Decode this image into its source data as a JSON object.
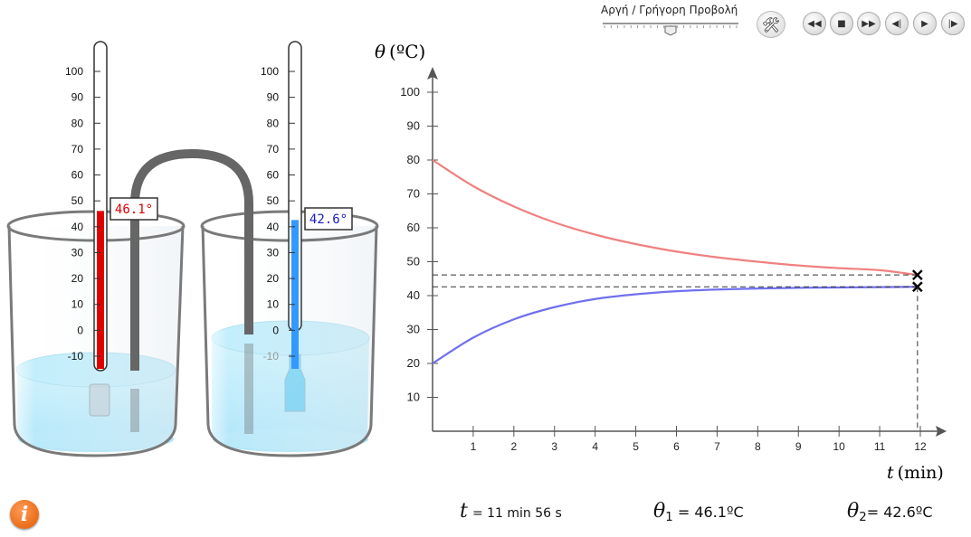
{
  "toolbar": {
    "speed_label": "Αργή / Γρήγορη Προβολή",
    "tools_icon": "hammer-wrench-icon",
    "controls": [
      {
        "name": "rewind-button",
        "icon": "rewind-icon",
        "glyph": "◀◀"
      },
      {
        "name": "stop-button",
        "icon": "stop-icon",
        "glyph": "■"
      },
      {
        "name": "fast-forward-button",
        "icon": "fast-forward-icon",
        "glyph": "▶▶"
      },
      {
        "name": "step-back-button",
        "icon": "step-back-icon",
        "glyph": "◀|"
      },
      {
        "name": "play-button",
        "icon": "play-icon",
        "glyph": "▶"
      },
      {
        "name": "step-forward-button",
        "icon": "step-forward-icon",
        "glyph": "|▶"
      }
    ]
  },
  "thermometers": {
    "scale": [
      "100",
      "90",
      "80",
      "70",
      "60",
      "50",
      "40",
      "30",
      "20",
      "10",
      "0",
      "-10"
    ],
    "left": {
      "value": 46.1,
      "label": "46.1°",
      "color": "#e00000"
    },
    "right": {
      "value": 42.6,
      "label": "42.6°",
      "color": "#3399ff"
    }
  },
  "chart_data": {
    "type": "line",
    "ylabel_symbol": "θ",
    "ylabel_unit": "(ºC)",
    "xlabel_symbol": "t",
    "xlabel_unit": "(min)",
    "xlim": [
      0,
      13
    ],
    "ylim": [
      0,
      108
    ],
    "xticks": [
      1,
      2,
      3,
      4,
      5,
      6,
      7,
      8,
      9,
      10,
      11,
      12
    ],
    "yticks": [
      10,
      20,
      30,
      40,
      50,
      60,
      70,
      80,
      90,
      100
    ],
    "series": [
      {
        "color": "#f08080",
        "x": [
          0,
          1,
          2,
          3,
          4,
          5,
          6,
          7,
          8,
          9,
          10,
          11,
          11.93
        ],
        "y": [
          80,
          72.3,
          66.3,
          61.6,
          58.0,
          55.2,
          53.0,
          51.3,
          50.0,
          48.9,
          48.1,
          47.5,
          46.1
        ]
      },
      {
        "color": "#7070ee",
        "x": [
          0,
          1,
          2,
          3,
          4,
          5,
          6,
          7,
          8,
          9,
          10,
          11,
          11.93
        ],
        "y": [
          20,
          27.6,
          33.0,
          36.6,
          39.0,
          40.4,
          41.3,
          41.8,
          42.1,
          42.3,
          42.4,
          42.5,
          42.6
        ]
      }
    ],
    "current": {
      "t": 11.93,
      "theta1": 46.1,
      "theta2": 42.6
    }
  },
  "readouts": {
    "t_symbol": "t",
    "t_value": "= 11 min  56 s",
    "theta1_symbol": "θ",
    "theta1_sub": "1",
    "theta1_value": "= 46.1ºC",
    "theta2_symbol": "θ",
    "theta2_sub": "2",
    "theta2_value": "= 42.6ºC"
  },
  "info_icon": "i"
}
